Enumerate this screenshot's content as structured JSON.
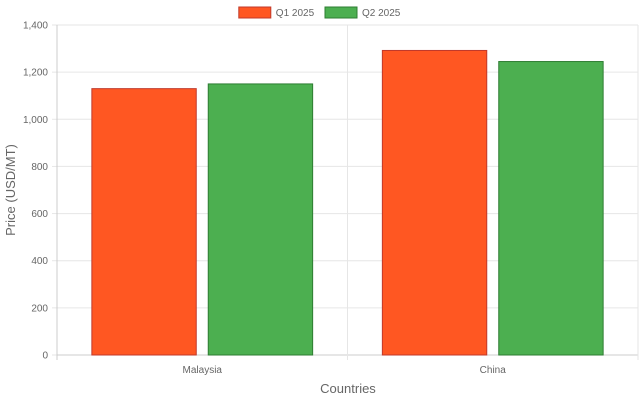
{
  "chart_data": {
    "type": "bar",
    "categories": [
      "Malaysia",
      "China"
    ],
    "series": [
      {
        "name": "Q1 2025",
        "color": "#FF5722",
        "border": "#C0392B",
        "values": [
          1130,
          1292
        ]
      },
      {
        "name": "Q2 2025",
        "color": "#4CAF50",
        "border": "#2E7D32",
        "values": [
          1150,
          1245
        ]
      }
    ],
    "xlabel": "Countries",
    "ylabel": "Price (USD/MT)",
    "ylim": [
      0,
      1400
    ],
    "yticks": [
      0,
      200,
      400,
      600,
      800,
      1000,
      1200,
      1400
    ],
    "ytick_labels": [
      "0",
      "200",
      "400",
      "600",
      "800",
      "1,000",
      "1,200",
      "1,400"
    ],
    "grid": true,
    "legend_position": "top-center"
  }
}
